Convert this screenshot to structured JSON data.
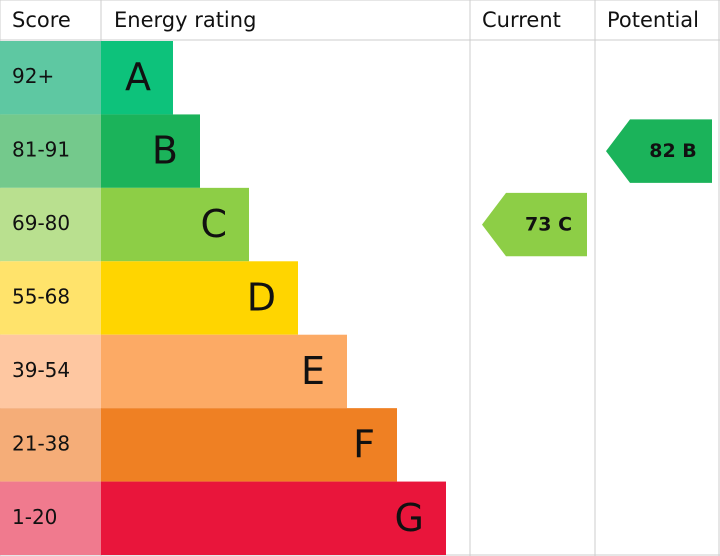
{
  "header": {
    "score": "Score",
    "rating": "Energy rating",
    "current": "Current",
    "potential": "Potential"
  },
  "bands": [
    {
      "score": "92+",
      "letter": "A",
      "color": "#0dc27b",
      "light": "#5ec8a2"
    },
    {
      "score": "81-91",
      "letter": "B",
      "color": "#1bb35a",
      "light": "#74c98c"
    },
    {
      "score": "69-80",
      "letter": "C",
      "color": "#8dce46",
      "light": "#b9e08f"
    },
    {
      "score": "55-68",
      "letter": "D",
      "color": "#ffd500",
      "light": "#ffe36b"
    },
    {
      "score": "39-54",
      "letter": "E",
      "color": "#fcaa65",
      "light": "#fec7a1"
    },
    {
      "score": "21-38",
      "letter": "F",
      "color": "#ef8023",
      "light": "#f5ad78"
    },
    {
      "score": "1-20",
      "letter": "G",
      "color": "#e9153b",
      "light": "#f07a8e"
    }
  ],
  "current": {
    "score": 73,
    "rating": "C"
  },
  "potential": {
    "score": 82,
    "rating": "B"
  }
}
